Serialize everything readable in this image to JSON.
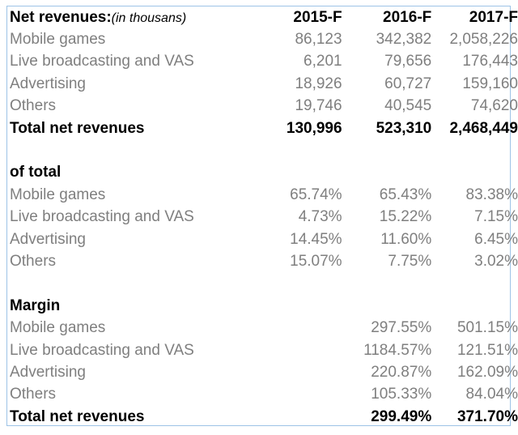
{
  "header": {
    "title": "Net revenues:",
    "subtitle": "(in thousans)",
    "years": [
      "2015-F",
      "2016-F",
      "2017-F"
    ]
  },
  "revenues": [
    {
      "label": "Mobile games",
      "v": [
        "86,123",
        "342,382",
        "2,058,226"
      ]
    },
    {
      "label": "Live broadcasting and VAS",
      "v": [
        "6,201",
        "79,656",
        "176,443"
      ]
    },
    {
      "label": "Advertising",
      "v": [
        "18,926",
        "60,727",
        "159,160"
      ]
    },
    {
      "label": "Others",
      "v": [
        "19,746",
        "40,545",
        "74,620"
      ]
    }
  ],
  "revenues_total": {
    "label": "Total net revenues",
    "v": [
      "130,996",
      "523,310",
      "2,468,449"
    ]
  },
  "of_total": {
    "title": "of total",
    "rows": [
      {
        "label": "Mobile games",
        "v": [
          "65.74%",
          "65.43%",
          "83.38%"
        ]
      },
      {
        "label": "Live broadcasting and VAS",
        "v": [
          "4.73%",
          "15.22%",
          "7.15%"
        ]
      },
      {
        "label": "Advertising",
        "v": [
          "14.45%",
          "11.60%",
          "6.45%"
        ]
      },
      {
        "label": "Others",
        "v": [
          "15.07%",
          "7.75%",
          "3.02%"
        ]
      }
    ]
  },
  "margin": {
    "title": "Margin",
    "rows": [
      {
        "label": "Mobile games",
        "v": [
          "",
          "297.55%",
          "501.15%"
        ]
      },
      {
        "label": "Live broadcasting and VAS",
        "v": [
          "",
          "1184.57%",
          "121.51%"
        ]
      },
      {
        "label": "Advertising",
        "v": [
          "",
          "220.87%",
          "162.09%"
        ]
      },
      {
        "label": "Others",
        "v": [
          "",
          "105.33%",
          "84.04%"
        ]
      }
    ],
    "total": {
      "label": "Total net revenues",
      "v": [
        "",
        "299.49%",
        "371.70%"
      ]
    }
  }
}
